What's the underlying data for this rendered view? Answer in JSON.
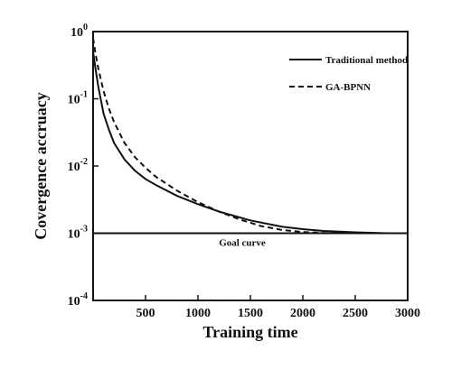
{
  "chart_data": {
    "type": "line",
    "xlabel": "Training time",
    "ylabel": "Covergence accruacy",
    "xlim": [
      0,
      3000
    ],
    "ylim": [
      0.0001,
      1
    ],
    "y_scale": "log",
    "x_ticks": [
      500,
      1000,
      1500,
      2000,
      2500,
      3000
    ],
    "x_tick_labels": [
      "500",
      "1000",
      "1500",
      "2000",
      "2500",
      "3000"
    ],
    "y_ticks": [
      {
        "value": 1,
        "base": "10",
        "exp": "0"
      },
      {
        "value": 0.1,
        "base": "10",
        "exp": "-1"
      },
      {
        "value": 0.01,
        "base": "10",
        "exp": "-2"
      },
      {
        "value": 0.001,
        "base": "10",
        "exp": "-3"
      },
      {
        "value": 0.0001,
        "base": "10",
        "exp": "-4"
      }
    ],
    "legend_position": "top-right",
    "grid": false,
    "series": [
      {
        "name": "Traditional method",
        "style": "solid",
        "color": "#111111",
        "x": [
          0,
          20,
          50,
          100,
          150,
          200,
          300,
          400,
          500,
          600,
          800,
          1000,
          1200,
          1500,
          1800,
          2000,
          2200,
          2500,
          2800,
          3000
        ],
        "y": [
          0.5,
          0.3,
          0.15,
          0.06,
          0.035,
          0.022,
          0.0125,
          0.0085,
          0.0064,
          0.0052,
          0.0036,
          0.0027,
          0.0021,
          0.00155,
          0.00125,
          0.00115,
          0.00108,
          0.00103,
          0.001,
          0.001
        ]
      },
      {
        "name": "GA-BPNN",
        "style": "dashed",
        "color": "#111111",
        "x": [
          0,
          20,
          50,
          100,
          150,
          200,
          300,
          400,
          500,
          600,
          800,
          1000,
          1200,
          1400,
          1600,
          1800,
          2000,
          2200,
          2500,
          3000
        ],
        "y": [
          0.8,
          0.5,
          0.28,
          0.13,
          0.072,
          0.045,
          0.022,
          0.0135,
          0.0094,
          0.0069,
          0.0043,
          0.0029,
          0.0021,
          0.0016,
          0.00128,
          0.00112,
          0.00104,
          0.00101,
          0.001,
          0.001
        ]
      }
    ],
    "goal": {
      "label": "Goal curve",
      "value": 0.001
    }
  }
}
